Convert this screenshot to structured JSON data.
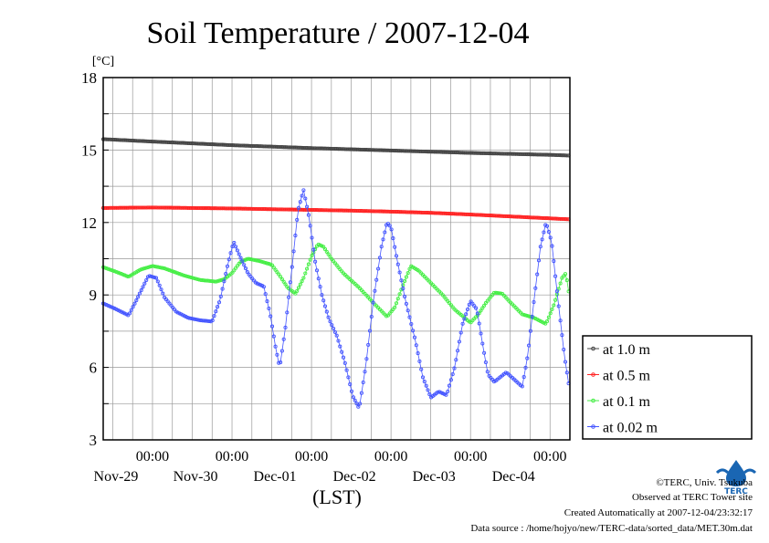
{
  "chart_data": {
    "type": "line",
    "title": "Soil Temperature / 2007-12-04",
    "ylabel": "[°C]",
    "xlabel": "(LST)",
    "ylim": [
      3,
      18
    ],
    "yticks": [
      3,
      6,
      9,
      12,
      15,
      18
    ],
    "xlim": [
      -1.62,
      4.25
    ],
    "xtick_time_label": "00:00",
    "xtick_dates": [
      "Nov-29",
      "Nov-30",
      "Dec-01",
      "Dec-02",
      "Dec-03",
      "Dec-04"
    ],
    "grid": true,
    "legend_position": "right-bottom, outside plot",
    "series": [
      {
        "name": "at 1.0 m",
        "color": "#444444",
        "values": [
          [
            -1.62,
            15.45
          ],
          [
            -1.0,
            15.35
          ],
          [
            0.0,
            15.2
          ],
          [
            1.0,
            15.08
          ],
          [
            2.0,
            14.98
          ],
          [
            3.0,
            14.88
          ],
          [
            4.0,
            14.8
          ],
          [
            4.25,
            14.77
          ]
        ]
      },
      {
        "name": "at 0.5 m",
        "color": "#ff2222",
        "values": [
          [
            -1.62,
            12.6
          ],
          [
            -1.0,
            12.62
          ],
          [
            0.0,
            12.58
          ],
          [
            0.5,
            12.55
          ],
          [
            1.0,
            12.52
          ],
          [
            1.5,
            12.49
          ],
          [
            2.0,
            12.45
          ],
          [
            2.5,
            12.4
          ],
          [
            3.0,
            12.33
          ],
          [
            3.5,
            12.25
          ],
          [
            4.0,
            12.17
          ],
          [
            4.25,
            12.13
          ]
        ]
      },
      {
        "name": "at 0.1 m",
        "color": "#44ee44",
        "values": [
          [
            -1.62,
            10.15
          ],
          [
            -1.45,
            9.95
          ],
          [
            -1.3,
            9.75
          ],
          [
            -1.15,
            10.05
          ],
          [
            -1.0,
            10.2
          ],
          [
            -0.85,
            10.1
          ],
          [
            -0.6,
            9.8
          ],
          [
            -0.4,
            9.62
          ],
          [
            -0.2,
            9.55
          ],
          [
            -0.1,
            9.65
          ],
          [
            0.0,
            9.9
          ],
          [
            0.1,
            10.35
          ],
          [
            0.2,
            10.5
          ],
          [
            0.35,
            10.4
          ],
          [
            0.5,
            10.25
          ],
          [
            0.6,
            9.8
          ],
          [
            0.7,
            9.3
          ],
          [
            0.8,
            9.05
          ],
          [
            0.9,
            9.7
          ],
          [
            1.0,
            10.6
          ],
          [
            1.08,
            11.1
          ],
          [
            1.15,
            11.0
          ],
          [
            1.25,
            10.5
          ],
          [
            1.4,
            9.9
          ],
          [
            1.6,
            9.3
          ],
          [
            1.8,
            8.6
          ],
          [
            1.95,
            8.1
          ],
          [
            2.05,
            8.5
          ],
          [
            2.15,
            9.4
          ],
          [
            2.25,
            10.2
          ],
          [
            2.35,
            10.0
          ],
          [
            2.5,
            9.5
          ],
          [
            2.65,
            9.0
          ],
          [
            2.8,
            8.4
          ],
          [
            3.0,
            7.85
          ],
          [
            3.1,
            8.2
          ],
          [
            3.2,
            8.7
          ],
          [
            3.3,
            9.1
          ],
          [
            3.4,
            9.05
          ],
          [
            3.5,
            8.7
          ],
          [
            3.65,
            8.2
          ],
          [
            3.8,
            8.05
          ],
          [
            3.95,
            7.8
          ],
          [
            4.05,
            8.6
          ],
          [
            4.15,
            9.7
          ],
          [
            4.2,
            9.9
          ],
          [
            4.25,
            8.8
          ]
        ]
      },
      {
        "name": "at 0.02 m",
        "color": "#4455ff",
        "values": [
          [
            -1.62,
            8.65
          ],
          [
            -1.45,
            8.4
          ],
          [
            -1.3,
            8.15
          ],
          [
            -1.2,
            8.8
          ],
          [
            -1.05,
            9.8
          ],
          [
            -0.95,
            9.7
          ],
          [
            -0.85,
            8.9
          ],
          [
            -0.7,
            8.3
          ],
          [
            -0.55,
            8.05
          ],
          [
            -0.4,
            7.95
          ],
          [
            -0.25,
            7.9
          ],
          [
            -0.15,
            8.8
          ],
          [
            -0.05,
            10.3
          ],
          [
            0.02,
            11.2
          ],
          [
            0.1,
            10.6
          ],
          [
            0.2,
            9.9
          ],
          [
            0.3,
            9.5
          ],
          [
            0.4,
            9.35
          ],
          [
            0.48,
            8.2
          ],
          [
            0.55,
            6.8
          ],
          [
            0.6,
            6.0
          ],
          [
            0.67,
            7.6
          ],
          [
            0.75,
            10.0
          ],
          [
            0.83,
            12.5
          ],
          [
            0.9,
            13.35
          ],
          [
            0.97,
            12.2
          ],
          [
            1.05,
            10.3
          ],
          [
            1.13,
            9.0
          ],
          [
            1.22,
            8.0
          ],
          [
            1.32,
            7.3
          ],
          [
            1.42,
            6.2
          ],
          [
            1.52,
            4.8
          ],
          [
            1.6,
            4.3
          ],
          [
            1.68,
            6.0
          ],
          [
            1.78,
            8.8
          ],
          [
            1.88,
            11.0
          ],
          [
            1.95,
            12.0
          ],
          [
            2.0,
            11.8
          ],
          [
            2.08,
            10.4
          ],
          [
            2.18,
            8.8
          ],
          [
            2.3,
            7.2
          ],
          [
            2.4,
            5.6
          ],
          [
            2.5,
            4.75
          ],
          [
            2.6,
            5.0
          ],
          [
            2.7,
            4.85
          ],
          [
            2.8,
            6.0
          ],
          [
            2.9,
            7.8
          ],
          [
            3.0,
            8.75
          ],
          [
            3.08,
            8.4
          ],
          [
            3.15,
            7.0
          ],
          [
            3.22,
            5.7
          ],
          [
            3.3,
            5.4
          ],
          [
            3.45,
            5.8
          ],
          [
            3.55,
            5.5
          ],
          [
            3.65,
            5.2
          ],
          [
            3.72,
            6.5
          ],
          [
            3.8,
            8.8
          ],
          [
            3.88,
            11.0
          ],
          [
            3.95,
            12.0
          ],
          [
            4.02,
            11.2
          ],
          [
            4.1,
            8.8
          ],
          [
            4.18,
            6.5
          ],
          [
            4.25,
            5.0
          ]
        ]
      }
    ]
  },
  "footer": {
    "copyright": "©TERC, Univ. Tsukuba",
    "observed": "Observed at TERC Tower site",
    "created": "Created Automatically at 2007-12-04/23:32:17",
    "source": "Data source : /home/hojyo/new/TERC-data/sorted_data/MET.30m.dat"
  },
  "logo": {
    "text": "TERC",
    "color": "#1a66b3"
  }
}
